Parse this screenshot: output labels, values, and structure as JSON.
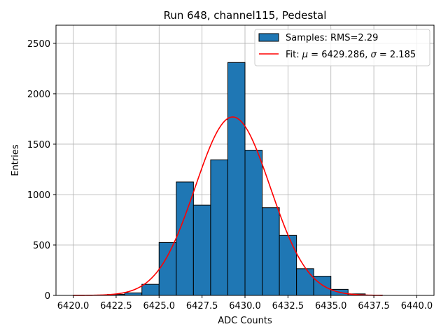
{
  "chart_data": {
    "type": "bar",
    "title": "Run 648, channel115, Pedestal",
    "xlabel": "ADC Counts",
    "ylabel": "Entries",
    "xlim": [
      6419.0,
      6441.0
    ],
    "ylim": [
      0,
      2680
    ],
    "xticks": [
      6420.0,
      6422.5,
      6425.0,
      6427.5,
      6430.0,
      6432.5,
      6435.0,
      6437.5,
      6440.0
    ],
    "xtick_labels": [
      "6420.0",
      "6422.5",
      "6425.0",
      "6427.5",
      "6430.0",
      "6432.5",
      "6435.0",
      "6437.5",
      "6440.0"
    ],
    "yticks": [
      0,
      500,
      1000,
      1500,
      2000,
      2500
    ],
    "ytick_labels": [
      "0",
      "500",
      "1000",
      "1500",
      "2000",
      "2500"
    ],
    "grid": true,
    "bin_width": 1,
    "bins": [
      {
        "left": 6422,
        "count": 10
      },
      {
        "left": 6423,
        "count": 25
      },
      {
        "left": 6424,
        "count": 110
      },
      {
        "left": 6425,
        "count": 525
      },
      {
        "left": 6426,
        "count": 1125
      },
      {
        "left": 6427,
        "count": 895
      },
      {
        "left": 6428,
        "count": 1345
      },
      {
        "left": 6429,
        "count": 2310
      },
      {
        "left": 6430,
        "count": 1440
      },
      {
        "left": 6431,
        "count": 870
      },
      {
        "left": 6432,
        "count": 595
      },
      {
        "left": 6433,
        "count": 265
      },
      {
        "left": 6434,
        "count": 190
      },
      {
        "left": 6435,
        "count": 60
      },
      {
        "left": 6436,
        "count": 15
      },
      {
        "left": 6437,
        "count": 3
      }
    ],
    "fit": {
      "mu": 6429.286,
      "sigma": 2.185,
      "amplitude": 1770,
      "x_range": [
        6420.0,
        6438.0
      ]
    },
    "legend": {
      "position": "top-right",
      "entries": [
        {
          "label": "Samples: RMS=2.29",
          "kind": "patch"
        },
        {
          "label_prefix": "Fit: ",
          "mu_symbol": "μ",
          "mu_text": " = 6429.286, ",
          "sigma_symbol": "σ",
          "sigma_text": " = 2.185",
          "kind": "line"
        }
      ]
    },
    "colors": {
      "bar": "#1f77b4",
      "bar_edge": "#000000",
      "fit": "#ff0000",
      "grid": "#b0b0b0"
    }
  }
}
